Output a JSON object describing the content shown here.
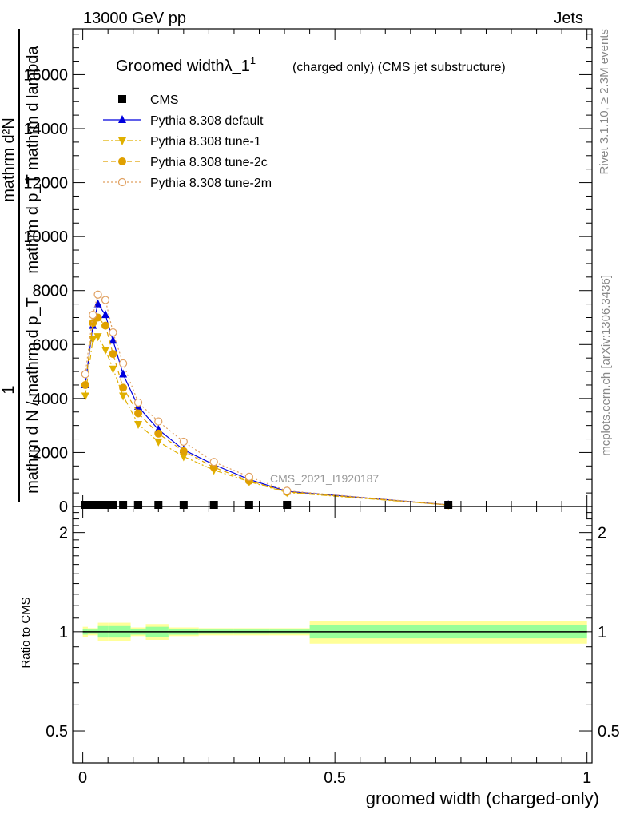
{
  "header": {
    "energy_label": "13000 GeV pp",
    "process_label": "Jets",
    "side_rivet": "Rivet 3.1.10, ≥ 2.3M events",
    "side_mcplots": "mcplots.cern.ch [arXiv:1306.3436]"
  },
  "chart_data": {
    "type": "line",
    "title": "Groomed widthλ_1",
    "title_superscript": "1",
    "subtitle": "(charged only) (CMS jet substructure)",
    "analysis_tag": "CMS_2021_I1920187",
    "xlabel": "groomed width (charged-only)",
    "ylabel_numerator": "mathrm d²N",
    "ylabel_denominator": "mathrm d p_T mathrm d lambda",
    "ylabel_prefactor_top": "1",
    "ylabel_prefactor_bottom": "mathrm d N / mathrm d p_T",
    "ratio_ylabel": "Ratio to CMS",
    "xlim": [
      -0.02,
      1.01
    ],
    "ylim": [
      0,
      17700
    ],
    "ratio_ylim": [
      0.4,
      2.4
    ],
    "ratio_log": true,
    "xticks": [
      0,
      0.5,
      1
    ],
    "xtick_labels": [
      "0",
      "0.5",
      "1"
    ],
    "yticks": [
      0,
      2000,
      4000,
      6000,
      8000,
      10000,
      12000,
      14000,
      16000
    ],
    "ytick_labels": [
      "0",
      "2000",
      "4000",
      "6000",
      "8000",
      "10000",
      "12000",
      "14000",
      "16000"
    ],
    "ratio_ticks": [
      0.5,
      1,
      2
    ],
    "ratio_tick_labels": [
      "0.5",
      "1",
      "2"
    ],
    "legend_position": "top-left",
    "x": [
      0.005,
      0.02,
      0.03,
      0.045,
      0.06,
      0.08,
      0.11,
      0.15,
      0.2,
      0.26,
      0.33,
      0.405,
      0.725
    ],
    "series": [
      {
        "name": "CMS",
        "marker": "square",
        "color": "#000000",
        "values": [
          25,
          25,
          25,
          25,
          25,
          25,
          25,
          25,
          25,
          25,
          25,
          25,
          25
        ]
      },
      {
        "name": "Pythia 8.308 default",
        "marker": "triangle-up",
        "color": "#0000dd",
        "linestyle": "solid",
        "values": [
          4500,
          6700,
          7500,
          7100,
          6150,
          4900,
          3700,
          2850,
          2100,
          1550,
          1000,
          560,
          60
        ]
      },
      {
        "name": "Pythia 8.308 tune-1",
        "marker": "triangle-down",
        "color": "#e0b000",
        "linestyle": "dashdot",
        "values": [
          4100,
          6200,
          6300,
          5800,
          5100,
          4100,
          3050,
          2400,
          1850,
          1350,
          920,
          520,
          55
        ]
      },
      {
        "name": "Pythia 8.308 tune-2c",
        "marker": "circle",
        "color": "#e0a000",
        "linestyle": "dashed",
        "values": [
          4500,
          6800,
          7000,
          6700,
          5650,
          4400,
          3450,
          2700,
          2050,
          1450,
          950,
          540,
          58
        ]
      },
      {
        "name": "Pythia 8.308 tune-2m",
        "marker": "circle-open",
        "color": "#e0a060",
        "linestyle": "dotted",
        "values": [
          4900,
          7100,
          7850,
          7650,
          6450,
          5300,
          3850,
          3150,
          2400,
          1650,
          1100,
          580,
          62
        ]
      }
    ],
    "ratio_bands": {
      "bin_edges": [
        0,
        0.01,
        0.03,
        0.05,
        0.095,
        0.125,
        0.17,
        0.23,
        0.3,
        0.37,
        0.45,
        1
      ],
      "green_lo": [
        0.98,
        0.985,
        0.96,
        0.96,
        0.98,
        0.965,
        0.98,
        0.985,
        0.985,
        0.985,
        0.955
      ],
      "green_hi": [
        1.02,
        1.015,
        1.04,
        1.04,
        1.02,
        1.035,
        1.02,
        1.015,
        1.015,
        1.015,
        1.045
      ],
      "yellow_lo": [
        0.965,
        0.975,
        0.935,
        0.935,
        0.97,
        0.945,
        0.97,
        0.975,
        0.975,
        0.975,
        0.92
      ],
      "yellow_hi": [
        1.035,
        1.025,
        1.065,
        1.065,
        1.03,
        1.055,
        1.03,
        1.025,
        1.025,
        1.025,
        1.08
      ],
      "green_color": "#99ff99",
      "yellow_color": "#ffff99"
    }
  }
}
